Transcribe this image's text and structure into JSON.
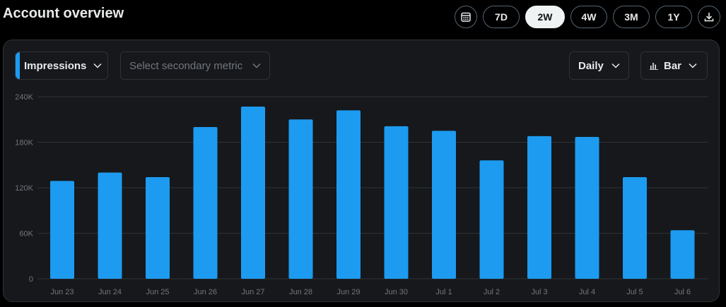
{
  "header": {
    "title": "Account overview",
    "ranges": [
      {
        "label": "7D"
      },
      {
        "label": "2W"
      },
      {
        "label": "4W"
      },
      {
        "label": "3M"
      },
      {
        "label": "1Y"
      }
    ],
    "active_range": "2W"
  },
  "controls": {
    "primary_metric": "Impressions",
    "secondary_placeholder": "Select secondary metric",
    "granularity": "Daily",
    "chart_type": "Bar"
  },
  "colors": {
    "bar": "#1d9bf0",
    "accent": "#1d9bf0",
    "grid": "#2f3336",
    "tick": "#71767b"
  },
  "chart_data": {
    "type": "bar",
    "categories": [
      "Jun 23",
      "Jun 24",
      "Jun 25",
      "Jun 26",
      "Jun 27",
      "Jun 28",
      "Jun 29",
      "Jun 30",
      "Jul 1",
      "Jul 2",
      "Jul 3",
      "Jul 4",
      "Jul 5",
      "Jul 6"
    ],
    "series": [
      {
        "values": [
          129000,
          140000,
          134000,
          200000,
          227000,
          210000,
          222000,
          201000,
          195000,
          156000,
          188000,
          187000,
          134000,
          64000
        ]
      }
    ],
    "y_ticks": [
      "0",
      "60K",
      "120K",
      "180K",
      "240K"
    ],
    "ylim": [
      0,
      240000
    ],
    "grid": true,
    "xlabel": "",
    "ylabel": ""
  }
}
